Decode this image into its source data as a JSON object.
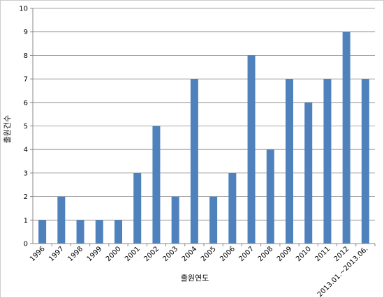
{
  "chart_data": {
    "type": "bar",
    "categories": [
      "1996",
      "1997",
      "1998",
      "1999",
      "2000",
      "2001",
      "2002",
      "2003",
      "2004",
      "2005",
      "2006",
      "2007",
      "2008",
      "2009",
      "2010",
      "2011",
      "2012",
      "2013.01.~2013.06."
    ],
    "values": [
      1,
      2,
      1,
      1,
      1,
      3,
      5,
      2,
      7,
      2,
      3,
      8,
      4,
      7,
      6,
      7,
      9,
      7
    ],
    "title": "",
    "xlabel": "출원연도",
    "ylabel": "출원건수",
    "ylim": [
      0,
      10
    ],
    "yticks": [
      "0",
      "1",
      "2",
      "3",
      "4",
      "5",
      "6",
      "7",
      "8",
      "9",
      "10"
    ],
    "grid": "horizontal",
    "bar_color": "#4F81BD",
    "grid_color": "#888888",
    "border_color": "#cccccc"
  }
}
